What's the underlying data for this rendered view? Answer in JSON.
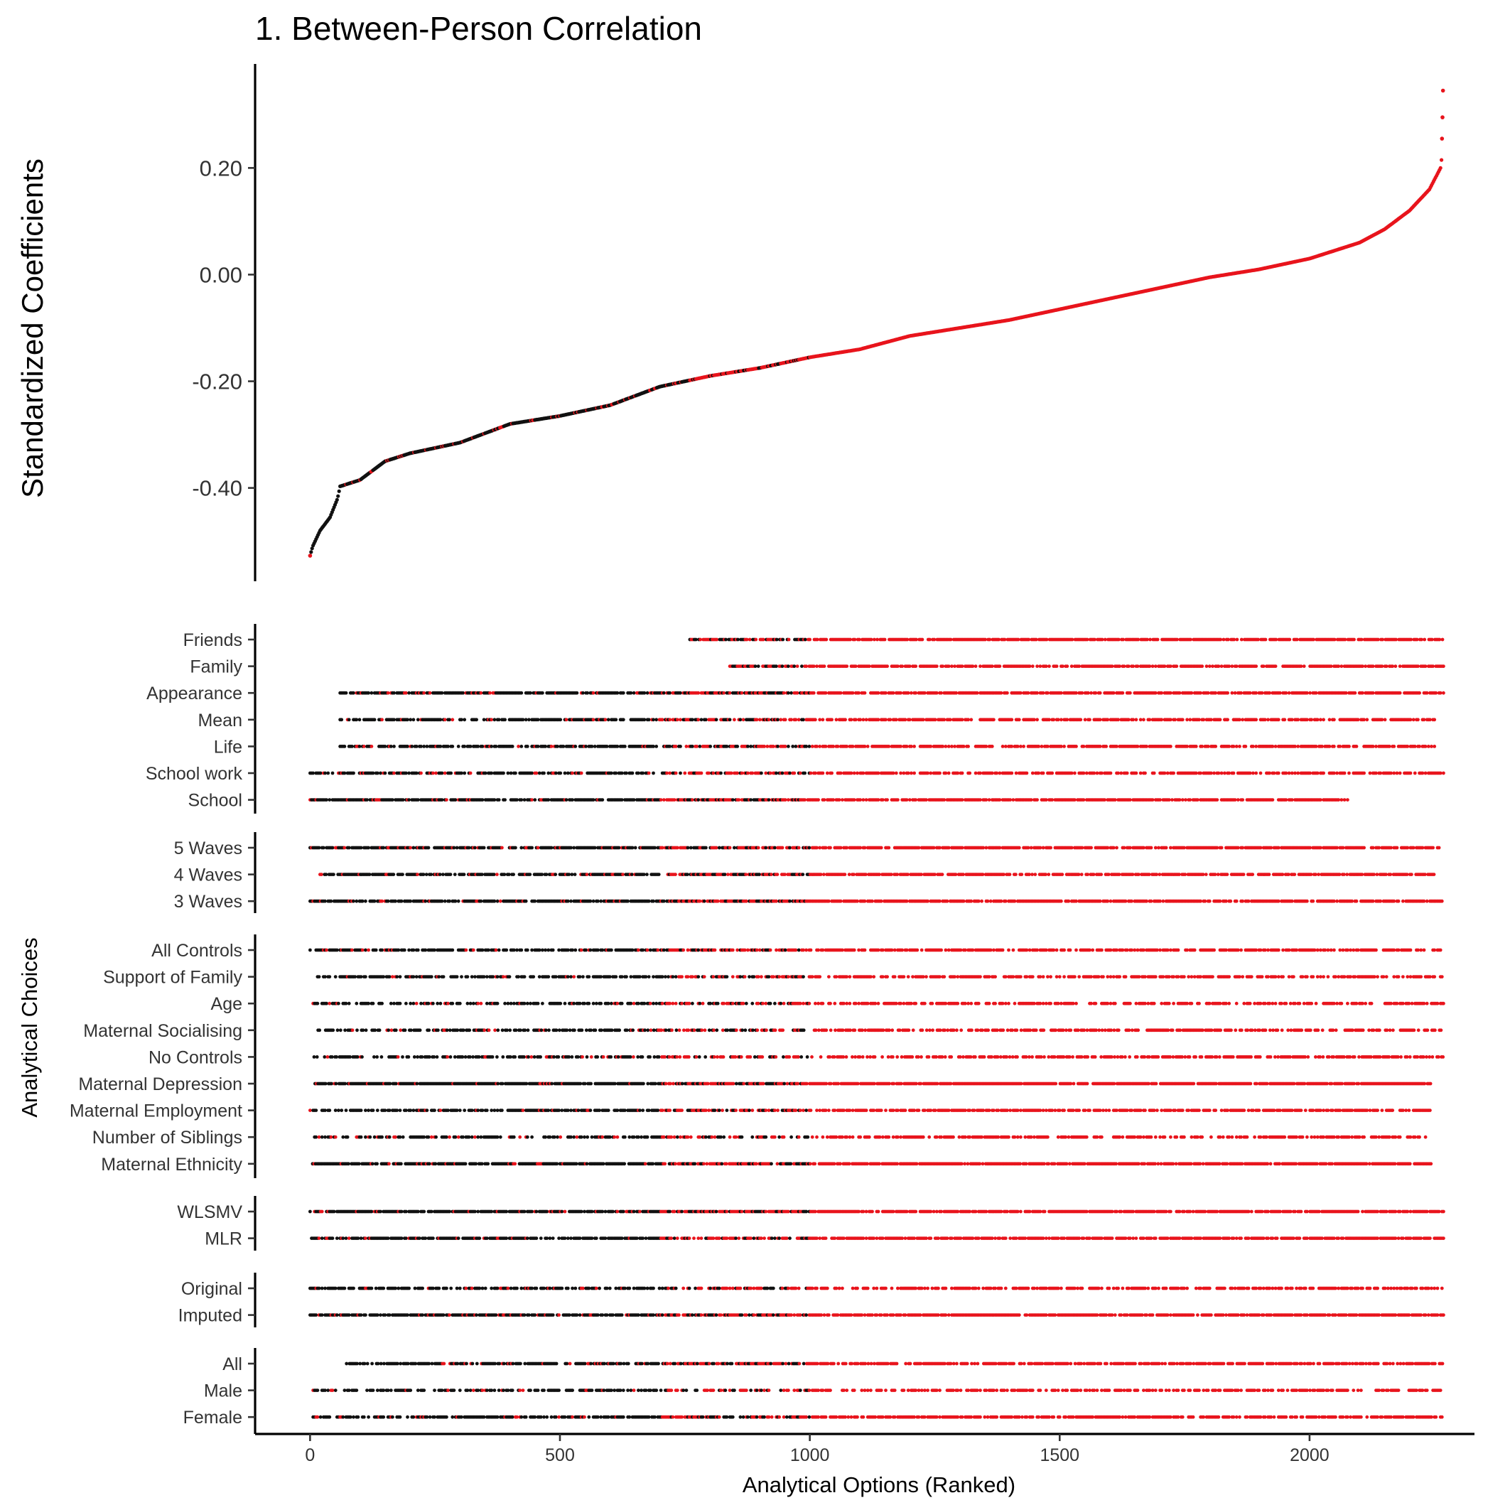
{
  "chart_data": {
    "type": "scatter",
    "title": "1. Between-Person Correlation",
    "n_options": 2268,
    "top_panel": {
      "ylabel": "Standardized Coefficients",
      "yticks": [
        "0.20",
        "0.00",
        "-0.20",
        "-0.40"
      ],
      "ytick_values": [
        0.2,
        0.0,
        -0.2,
        -0.4
      ],
      "ylim": [
        -0.575,
        0.395
      ],
      "curve_anchors": [
        {
          "rank": 0,
          "value": -0.527
        },
        {
          "rank": 5,
          "value": -0.51
        },
        {
          "rank": 20,
          "value": -0.48
        },
        {
          "rank": 40,
          "value": -0.455
        },
        {
          "rank": 55,
          "value": -0.42
        },
        {
          "rank": 60,
          "value": -0.397
        },
        {
          "rank": 100,
          "value": -0.385
        },
        {
          "rank": 150,
          "value": -0.35
        },
        {
          "rank": 200,
          "value": -0.335
        },
        {
          "rank": 300,
          "value": -0.315
        },
        {
          "rank": 400,
          "value": -0.28
        },
        {
          "rank": 500,
          "value": -0.265
        },
        {
          "rank": 600,
          "value": -0.245
        },
        {
          "rank": 700,
          "value": -0.21
        },
        {
          "rank": 800,
          "value": -0.19
        },
        {
          "rank": 900,
          "value": -0.175
        },
        {
          "rank": 1000,
          "value": -0.155
        },
        {
          "rank": 1100,
          "value": -0.14
        },
        {
          "rank": 1200,
          "value": -0.115
        },
        {
          "rank": 1300,
          "value": -0.1
        },
        {
          "rank": 1400,
          "value": -0.085
        },
        {
          "rank": 1500,
          "value": -0.065
        },
        {
          "rank": 1600,
          "value": -0.045
        },
        {
          "rank": 1700,
          "value": -0.025
        },
        {
          "rank": 1800,
          "value": -0.005
        },
        {
          "rank": 1900,
          "value": 0.01
        },
        {
          "rank": 2000,
          "value": 0.03
        },
        {
          "rank": 2100,
          "value": 0.06
        },
        {
          "rank": 2150,
          "value": 0.085
        },
        {
          "rank": 2200,
          "value": 0.12
        },
        {
          "rank": 2240,
          "value": 0.16
        },
        {
          "rank": 2262,
          "value": 0.2
        },
        {
          "rank": 2264,
          "value": 0.215
        },
        {
          "rank": 2266,
          "value": 0.295
        },
        {
          "rank": 2267,
          "value": 0.345
        }
      ],
      "significance_color_switch_rank": 760
    },
    "bottom_panel": {
      "ylabel": "Analytical Choices",
      "xlabel": "Analytical Options (Ranked)",
      "xticks": [
        "0",
        "500",
        "1000",
        "1500",
        "2000"
      ],
      "xtick_values": [
        0,
        500,
        1000,
        1500,
        2000
      ],
      "xlim": [
        -110,
        2330
      ],
      "groups": [
        {
          "labels": [
            "Friends",
            "Family",
            "Appearance",
            "Mean",
            "Life",
            "School work",
            "School"
          ],
          "start_ranks": [
            760,
            840,
            60,
            60,
            60,
            0,
            0
          ],
          "end_ranks": [
            2268,
            2268,
            2268,
            2250,
            2250,
            2268,
            2080
          ]
        },
        {
          "labels": [
            "5 Waves",
            "4 Waves",
            "3 Waves"
          ],
          "start_ranks": [
            0,
            20,
            0
          ],
          "end_ranks": [
            2268,
            2250,
            2268
          ]
        },
        {
          "labels": [
            "All Controls",
            "Support of Family",
            "Age",
            "Maternal Socialising",
            "No Controls",
            "Maternal Depression",
            "Maternal Employment",
            "Number of Siblings",
            "Maternal Ethnicity"
          ],
          "start_ranks": [
            0,
            15,
            0,
            10,
            5,
            10,
            0,
            0,
            5
          ],
          "end_ranks": [
            2268,
            2268,
            2268,
            2268,
            2268,
            2245,
            2245,
            2235,
            2245
          ]
        },
        {
          "labels": [
            "WLSMV",
            "MLR"
          ],
          "start_ranks": [
            0,
            0
          ],
          "end_ranks": [
            2268,
            2268
          ]
        },
        {
          "labels": [
            "Original",
            "Imputed"
          ],
          "start_ranks": [
            0,
            0
          ],
          "end_ranks": [
            2268,
            2268
          ]
        },
        {
          "labels": [
            "All",
            "Male",
            "Female"
          ],
          "start_ranks": [
            70,
            0,
            0
          ],
          "end_ranks": [
            2268,
            2268,
            2268
          ]
        }
      ]
    },
    "colors": {
      "significant": "#e8141c",
      "nonsignificant": "#111111"
    }
  }
}
